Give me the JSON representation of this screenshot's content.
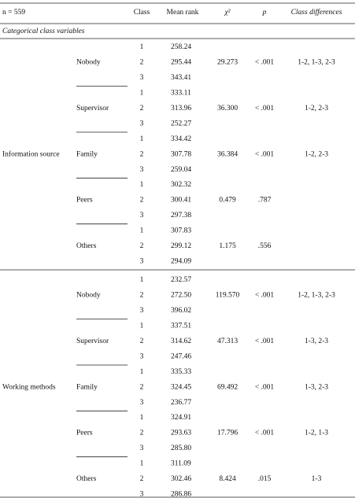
{
  "header": {
    "n": "n = 559",
    "class": "Class",
    "mean_rank": "Mean rank",
    "chi2": "χ²",
    "p": "p",
    "differences": "Class differences"
  },
  "section": "Categorical class variables",
  "groups": [
    {
      "label": "Information source",
      "subgroups": [
        {
          "label": "Nobody",
          "classes": [
            "1",
            "2",
            "3"
          ],
          "mean_ranks": [
            "258.24",
            "295.44",
            "343.41"
          ],
          "chi2": "29.273",
          "p": "< .001",
          "differences": "1-2, 1-3, 2-3"
        },
        {
          "label": "Supervisor",
          "classes": [
            "1",
            "2",
            "3"
          ],
          "mean_ranks": [
            "333.11",
            "313.96",
            "252.27"
          ],
          "chi2": "36.300",
          "p": "< .001",
          "differences": "1-2, 2-3"
        },
        {
          "label": "Family",
          "classes": [
            "1",
            "2",
            "3"
          ],
          "mean_ranks": [
            "334.42",
            "307.78",
            "259.04"
          ],
          "chi2": "36.384",
          "p": "< .001",
          "differences": "1-2, 2-3"
        },
        {
          "label": "Peers",
          "classes": [
            "1",
            "2",
            "3"
          ],
          "mean_ranks": [
            "302.32",
            "300.41",
            "297.38"
          ],
          "chi2": "0.479",
          "p": ".787"
        },
        {
          "label": "Others",
          "classes": [
            "1",
            "2",
            "3"
          ],
          "mean_ranks": [
            "307.83",
            "299.12",
            "294.09"
          ],
          "chi2": "1.175",
          "p": ".556"
        }
      ]
    },
    {
      "label": "Working methods",
      "subgroups": [
        {
          "label": "Nobody",
          "classes": [
            "1",
            "2",
            "3"
          ],
          "mean_ranks": [
            "232.57",
            "272.50",
            "396.02"
          ],
          "chi2": "119.570",
          "p": "< .001",
          "differences": "1-2, 1-3, 2-3"
        },
        {
          "label": "Supervisor",
          "classes": [
            "1",
            "2",
            "3"
          ],
          "mean_ranks": [
            "337.51",
            "314.62",
            "247.46"
          ],
          "chi2": "47.313",
          "p": "< .001",
          "differences": "1-3, 2-3"
        },
        {
          "label": "Family",
          "classes": [
            "1",
            "2",
            "3"
          ],
          "mean_ranks": [
            "335.33",
            "324.45",
            "236.77"
          ],
          "chi2": "69.492",
          "p": "< .001",
          "differences": "1-3, 2-3"
        },
        {
          "label": "Peers",
          "classes": [
            "1",
            "2",
            "3"
          ],
          "mean_ranks": [
            "324.91",
            "293.63",
            "285.80"
          ],
          "chi2": "17.796",
          "p": "< .001",
          "differences": "1-2, 1-3"
        },
        {
          "label": "Others",
          "classes": [
            "1",
            "2",
            "3"
          ],
          "mean_ranks": [
            "311.09",
            "302.46",
            "286.86"
          ],
          "chi2": "8.424",
          "p": ".015",
          "differences": "1-3"
        }
      ]
    }
  ]
}
